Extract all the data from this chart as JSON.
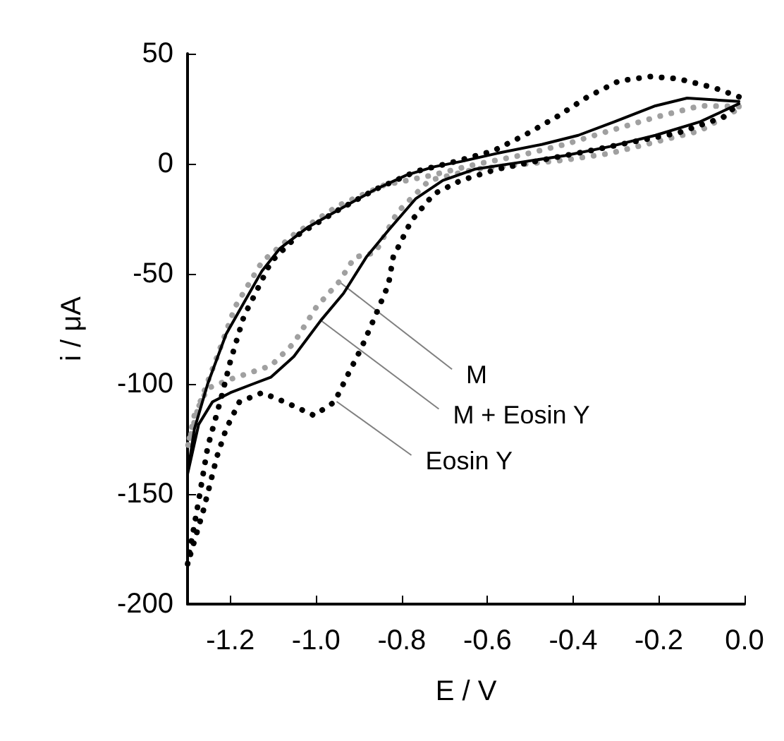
{
  "chart_data": {
    "type": "line",
    "xlabel": "E / V",
    "ylabel": "i / μA",
    "xlim": [
      -1.3,
      0.0
    ],
    "xticks": [
      -1.2,
      {
        "value": -1,
        "label": "-1.0"
      },
      -0.8,
      -0.6,
      -0.4,
      -0.2,
      {
        "value": 0,
        "label": "0.0"
      }
    ],
    "ylim": [
      -200,
      50
    ],
    "yticks": [
      -200,
      -150,
      -100,
      -50,
      0,
      50
    ],
    "grid": false,
    "series": [
      {
        "color": "#a0a0a0",
        "line_style": "dotted",
        "x": [
          -0.013,
          -0.103,
          -0.208,
          -0.314,
          -0.419,
          -0.525,
          -0.63,
          -0.736,
          -0.841,
          -0.947,
          -1.052,
          -1.126,
          -1.189,
          -1.231,
          -1.274,
          -1.3,
          -1.284,
          -1.253,
          -1.2,
          -1.105,
          -1.052,
          -0.999,
          -0.947,
          -0.91,
          -0.862,
          -0.81,
          -0.736,
          -0.63,
          -0.525,
          -0.419,
          -0.314,
          -0.208,
          -0.103,
          -0.013
        ],
        "values": [
          26,
          26.3,
          21.1,
          15,
          8.8,
          3.7,
          -0.4,
          -5.5,
          -9.7,
          -18.9,
          -32.2,
          -44.5,
          -65,
          -87.6,
          -110,
          -128.7,
          -114.3,
          -102,
          -97.9,
          -91.7,
          -81.5,
          -65,
          -53.8,
          -42.5,
          -40.4,
          -22,
          -7.6,
          -2.5,
          -0.4,
          1.7,
          4.7,
          9.9,
          15,
          25
        ]
      },
      {
        "color": "#000000",
        "line_style": "solid",
        "x": [
          -0.013,
          -0.134,
          -0.208,
          -0.303,
          -0.388,
          -0.472,
          -0.578,
          -0.662,
          -0.725,
          -0.788,
          -0.862,
          -0.947,
          -1.021,
          -1.084,
          -1.126,
          -1.168,
          -1.21,
          -1.253,
          -1.284,
          -1.3,
          -1.274,
          -1.242,
          -1.2,
          -1.147,
          -1.105,
          -1.052,
          -0.989,
          -0.936,
          -0.883,
          -0.831,
          -0.767,
          -0.704,
          -0.63,
          -0.525,
          -0.419,
          -0.314,
          -0.208,
          -0.103,
          -0.013
        ],
        "values": [
          28.3,
          29.8,
          26.3,
          19.1,
          12.9,
          8.8,
          4.7,
          1,
          -1.4,
          -5.1,
          -11.7,
          -20.9,
          -29.1,
          -38.4,
          -48.6,
          -63,
          -77.4,
          -100,
          -120.5,
          -141,
          -118.4,
          -108.2,
          -104,
          -100,
          -96.9,
          -87.6,
          -71.2,
          -58.9,
          -42.5,
          -30.2,
          -15.8,
          -7.6,
          -2.5,
          0.6,
          3.7,
          7.8,
          12.9,
          19.1,
          27.3
        ]
      },
      {
        "color": "#000000",
        "line_style": "dotted",
        "x": [
          -0.013,
          -0.071,
          -0.155,
          -0.219,
          -0.293,
          -0.366,
          -0.44,
          -0.514,
          -0.588,
          -0.683,
          -0.767,
          -0.862,
          -0.947,
          -1.041,
          -1.105,
          -1.147,
          -1.168,
          -1.2,
          -1.221,
          -1.253,
          -1.274,
          -1.295,
          -1.3,
          -1.263,
          -1.231,
          -1.21,
          -1.179,
          -1.126,
          -1.073,
          -1.005,
          -0.957,
          -0.926,
          -0.894,
          -0.862,
          -0.831,
          -0.82,
          -0.778,
          -0.725,
          -0.662,
          -0.578,
          -0.472,
          -0.366,
          -0.261,
          -0.155,
          -0.05,
          -0.013
        ],
        "values": [
          30.4,
          34.5,
          38.6,
          39.6,
          37.6,
          30.4,
          21.1,
          12.9,
          5.7,
          0.6,
          -3.5,
          -11.7,
          -20.9,
          -32.2,
          -44.5,
          -61,
          -69,
          -89.7,
          -106,
          -128.7,
          -153,
          -176,
          -182,
          -157.4,
          -132.8,
          -120.5,
          -108.2,
          -104,
          -108.2,
          -114.3,
          -108.2,
          -95.9,
          -83.6,
          -69.2,
          -54.8,
          -42.5,
          -26,
          -13.7,
          -7.6,
          -2.5,
          1.7,
          5.7,
          9.9,
          14,
          21.1,
          27.3
        ]
      }
    ],
    "annotations": [
      {
        "text": "M",
        "x": -0.946,
        "y": -53.6
      },
      {
        "text": "M + Eosin Y",
        "x": -0.99,
        "y": -71
      },
      {
        "text": "Eosin Y",
        "x": -0.952,
        "y": -108
      }
    ]
  }
}
